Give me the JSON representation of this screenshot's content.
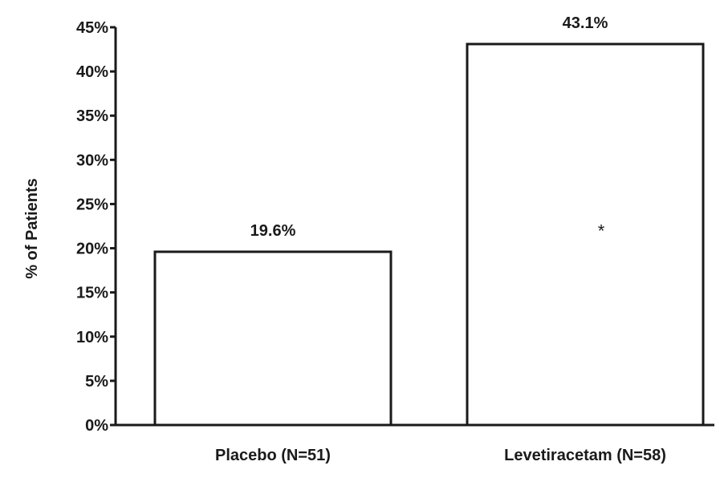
{
  "chart_data": {
    "type": "bar",
    "title": "",
    "xlabel": "",
    "ylabel": "% of Patients",
    "ylim": [
      0,
      45
    ],
    "y_ticks": [
      0,
      5,
      10,
      15,
      20,
      25,
      30,
      35,
      40,
      45
    ],
    "y_tick_format": "percent",
    "grid": false,
    "legend": "none",
    "categories": [
      "Placebo (N=51)",
      "Levetiracetam (N=58)"
    ],
    "values": [
      19.6,
      43.1
    ],
    "data_labels": [
      "19.6%",
      "43.1%"
    ],
    "annotations": [
      {
        "category": "Levetiracetam (N=58)",
        "text": "*"
      }
    ],
    "colors": {
      "bar_fill": "#ffffff",
      "bar_stroke": "#1a1a1a",
      "axis": "#1a1a1a",
      "text": "#1a1a1a"
    }
  }
}
